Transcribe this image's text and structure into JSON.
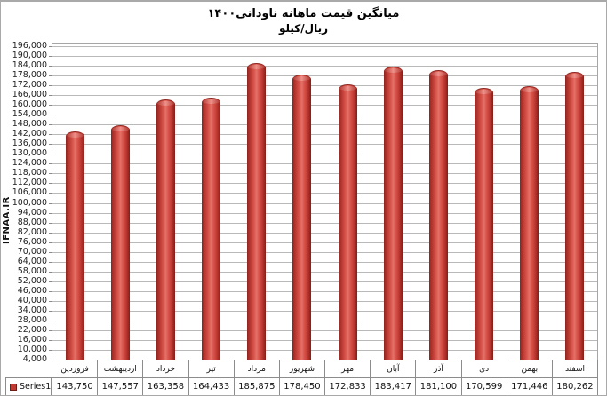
{
  "header": {
    "title": "میانگین قیمت ماهانه ناودانی۱۴۰۰",
    "subtitle": "ریال/کیلو"
  },
  "watermark": {
    "text": "IFNAA.IR"
  },
  "colors": {
    "bar_main": "#cc453e",
    "bar_edge": "#8b221e",
    "bar_highlight": "#f09189",
    "gridline": "#b9b9b9",
    "plot_border": "#a6a6a6",
    "table_border": "#8c8c8c",
    "legend_marker": "#c03a32",
    "text": "#000000"
  },
  "chart_data": {
    "type": "bar",
    "title": "میانگین قیمت ماهانه ناودانی۱۴۰۰",
    "subtitle": "ریال/کیلو",
    "series_name": "Series1",
    "categories": [
      "فروردین",
      "اردیبهشت",
      "خرداد",
      "تیر",
      "مرداد",
      "شهریور",
      "مهر",
      "آبان",
      "آذر",
      "دی",
      "بهمن",
      "اسفند"
    ],
    "values": [
      143750,
      147557,
      163358,
      164433,
      185875,
      178450,
      172833,
      183417,
      181100,
      170599,
      171446,
      180262
    ],
    "value_labels": [
      "143,750",
      "147,557",
      "163,358",
      "164,433",
      "185,875",
      "178,450",
      "172,833",
      "183,417",
      "181,100",
      "170,599",
      "171,446",
      "180,262"
    ],
    "ylim": [
      4000,
      196000
    ],
    "ytick_step": 6000,
    "grid": true,
    "legend_position": "bottom-left",
    "bar_style": "cylinder"
  }
}
